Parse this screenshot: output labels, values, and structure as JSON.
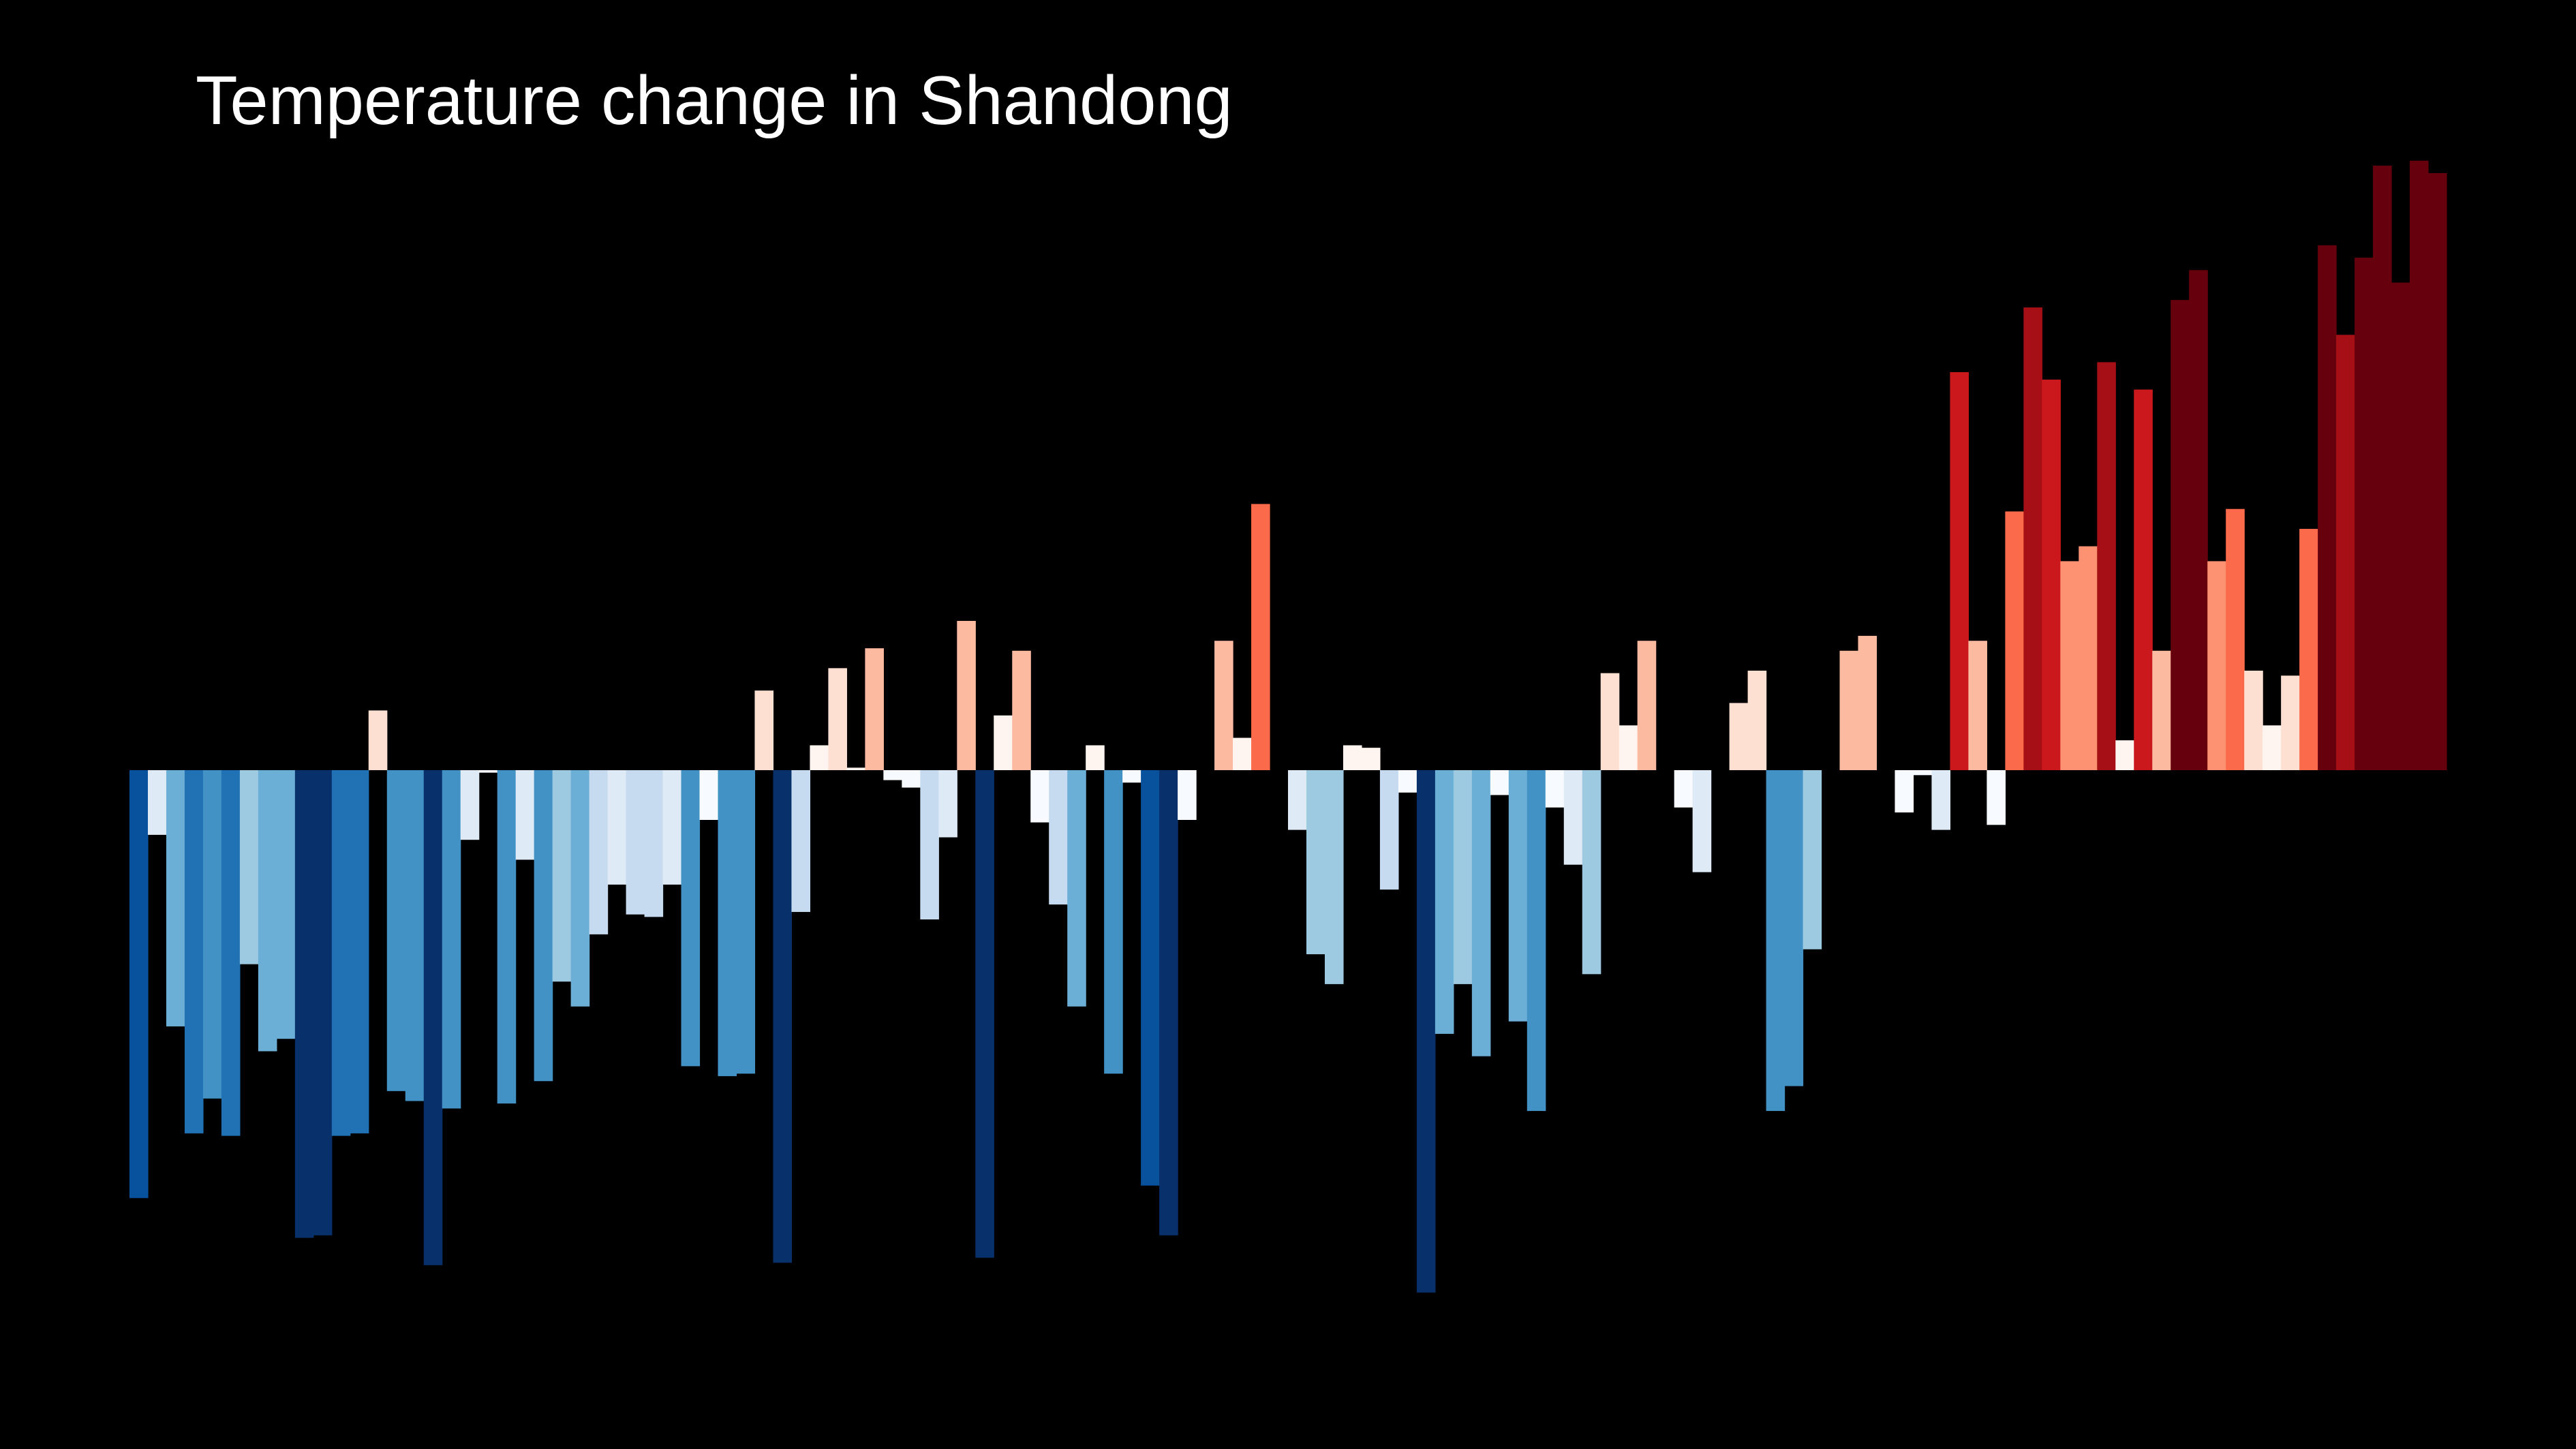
{
  "chart_data": {
    "type": "bar",
    "title": "Temperature change in Shandong",
    "xlabel": "",
    "ylabel": "",
    "grid": false,
    "legend": "none",
    "ylim": [
      -2.1,
      2.45
    ],
    "colors": {
      "background": "#000000",
      "text": "#ffffff",
      "cold_extreme": "#08306b",
      "neutral": "#ffffff",
      "warm_extreme": "#67000d"
    },
    "values": [
      -1.72,
      -0.26,
      -1.03,
      -1.46,
      -1.32,
      -1.47,
      -0.78,
      -1.13,
      -1.08,
      -1.88,
      -1.87,
      -1.47,
      -1.46,
      0.24,
      -1.29,
      -1.33,
      -1.99,
      -1.36,
      -0.28,
      -0.01,
      -1.34,
      -0.36,
      -1.25,
      -0.85,
      -0.95,
      -0.66,
      -0.46,
      -0.58,
      -0.59,
      -0.46,
      -1.19,
      -0.2,
      -1.23,
      -1.22,
      0.32,
      -1.98,
      -0.57,
      0.1,
      0.41,
      0.01,
      0.49,
      -0.04,
      -0.07,
      -0.6,
      -0.27,
      0.6,
      -1.96,
      0.22,
      0.48,
      -0.21,
      -0.54,
      -0.95,
      0.1,
      -1.22,
      -0.05,
      -1.67,
      -1.87,
      -0.2,
      0.0,
      0.52,
      0.13,
      1.07,
      0.0,
      -0.24,
      -0.74,
      -0.86,
      0.1,
      0.09,
      -0.48,
      -0.09,
      -2.1,
      -1.06,
      -0.86,
      -1.15,
      -0.1,
      -1.01,
      -1.37,
      -0.15,
      -0.38,
      -0.82,
      0.39,
      0.18,
      0.52,
      0.0,
      -0.15,
      -0.41,
      0.0,
      0.27,
      0.4,
      -1.37,
      -1.27,
      -0.72,
      0.0,
      0.48,
      0.54,
      0.0,
      -0.17,
      -0.02,
      -0.24,
      1.6,
      0.52,
      -0.22,
      1.04,
      1.86,
      1.57,
      0.84,
      0.9,
      1.64,
      0.12,
      1.53,
      0.48,
      1.89,
      2.01,
      0.84,
      1.05,
      0.4,
      0.18,
      0.38,
      0.97,
      2.11,
      1.75,
      2.06,
      2.43,
      1.96,
      2.45,
      2.4
    ]
  }
}
